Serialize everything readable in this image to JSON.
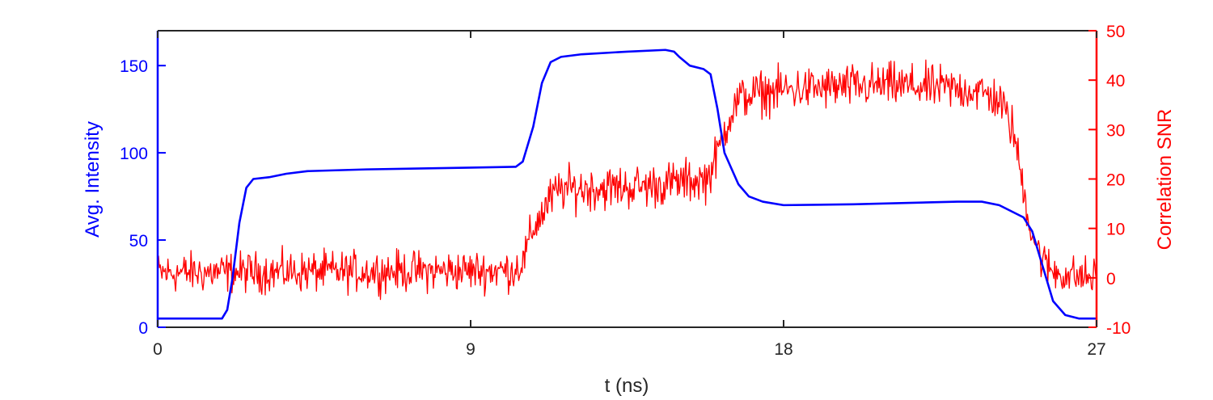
{
  "chart_data": {
    "type": "line",
    "title": "",
    "xlabel": "t (ns)",
    "ylabel_left": "Avg. Intensity",
    "ylabel_right": "Correlation SNR",
    "xlim": [
      0,
      27
    ],
    "ylim_left": [
      0,
      170
    ],
    "ylim_right": [
      -10,
      50
    ],
    "x_ticks": [
      "0",
      "9",
      "18",
      "27"
    ],
    "y_ticks_left": [
      "0",
      "50",
      "100",
      "150"
    ],
    "y_ticks_right": [
      "-10",
      "0",
      "10",
      "20",
      "30",
      "40",
      "50"
    ],
    "grid": false,
    "legend": "none",
    "colors": {
      "left": "#0000ff",
      "right": "#ff0000",
      "axes": "#262626"
    },
    "series": [
      {
        "axis": "left",
        "color": "#0000ff",
        "x": [
          0,
          1.85,
          2.0,
          2.15,
          2.35,
          2.55,
          2.75,
          3.2,
          3.7,
          4.3,
          6,
          9,
          10.3,
          10.5,
          10.8,
          11.05,
          11.3,
          11.6,
          12.2,
          13.5,
          14.6,
          14.85,
          15.0,
          15.3,
          15.7,
          15.9,
          16.1,
          16.3,
          16.7,
          17.0,
          17.4,
          18,
          20,
          23,
          23.7,
          24.2,
          24.6,
          24.9,
          25.15,
          25.45,
          25.75,
          26.1,
          26.5,
          27
        ],
        "y": [
          5,
          5,
          10,
          28,
          60,
          80,
          85,
          86,
          88,
          89.5,
          90.5,
          91.5,
          92,
          95,
          115,
          140,
          152,
          155,
          156.5,
          158,
          159,
          158,
          155,
          150,
          148,
          145,
          125,
          100,
          82,
          75,
          72,
          70,
          70.5,
          72,
          72,
          70,
          66,
          63,
          55,
          35,
          15,
          7,
          5,
          5
        ]
      },
      {
        "axis": "right",
        "color": "#ff0000",
        "noisy": true,
        "x": [
          0,
          10.2,
          10.5,
          10.8,
          11.3,
          11.6,
          12,
          14,
          15.8,
          16.1,
          16.4,
          16.7,
          17,
          17.5,
          18,
          21,
          23.5,
          24.2,
          24.6,
          24.85,
          25.1,
          25.4,
          25.7,
          26.2,
          27
        ],
        "y": [
          1,
          1.5,
          3,
          10,
          16,
          18,
          18,
          18.5,
          20,
          25,
          32,
          36,
          37,
          37.5,
          38,
          39,
          38,
          36,
          30,
          20,
          10,
          4,
          1.5,
          0.5,
          0
        ],
        "noise_amplitude": [
          3.2,
          3.2,
          3.2,
          3.5,
          3.5,
          3.5,
          3.5,
          3.5,
          3.5,
          3.5,
          3.5,
          3.5,
          3.5,
          3.5,
          3.5,
          3.5,
          3.5,
          3.5,
          3.5,
          3.2,
          3.2,
          3.2,
          3.2,
          3.2,
          3.2
        ]
      }
    ]
  }
}
